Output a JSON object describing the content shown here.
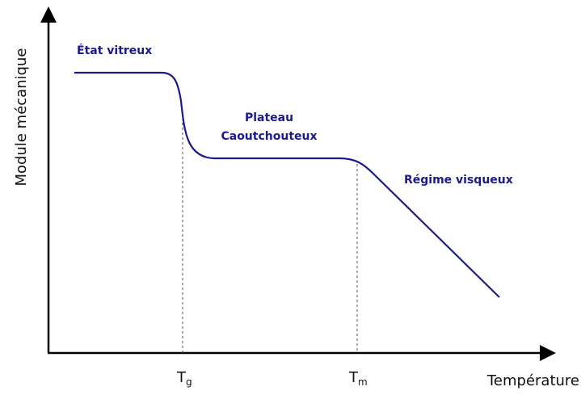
{
  "axes": {
    "y_label": "Module mécanique",
    "x_label": "Température"
  },
  "regions": [
    {
      "lines": [
        "État vitreux"
      ]
    },
    {
      "lines": [
        "Plateau",
        "Caoutchouteux"
      ]
    },
    {
      "lines": [
        "Régime visqueux"
      ]
    }
  ],
  "markers": [
    {
      "symbol": "T",
      "subscript": "g"
    },
    {
      "symbol": "T",
      "subscript": "m"
    }
  ]
}
